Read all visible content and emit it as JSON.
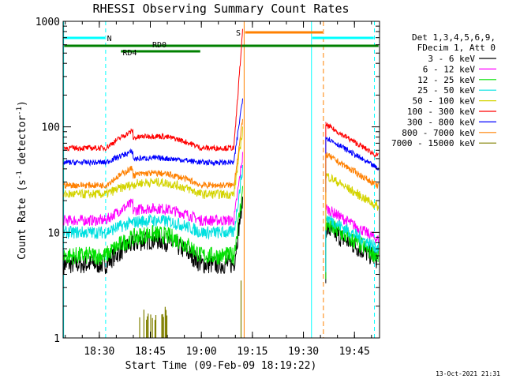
{
  "chart_data": {
    "type": "line",
    "title": "RHESSI Observing Summary Count Rates",
    "xlabel": "Start Time (09-Feb-09 18:19:22)",
    "ylabel_main": "Count Rate (s",
    "ylabel_sup1": "-1",
    "ylabel_mid": " detector",
    "ylabel_sup2": "-1",
    "ylabel_end": ")",
    "yscale": "log",
    "ylim": [
      1,
      1000
    ],
    "xlim_minutes": [
      0,
      93
    ],
    "x_ticks": [
      {
        "m": 10.63,
        "label": "18:30"
      },
      {
        "m": 25.63,
        "label": "18:45"
      },
      {
        "m": 40.63,
        "label": "19:00"
      },
      {
        "m": 55.63,
        "label": "19:15"
      },
      {
        "m": 70.63,
        "label": "19:30"
      },
      {
        "m": 85.63,
        "label": "19:45"
      }
    ],
    "y_ticks": [
      {
        "v": 1,
        "label": "1"
      },
      {
        "v": 10,
        "label": "10"
      },
      {
        "v": 100,
        "label": "100"
      },
      {
        "v": 1000,
        "label": "1000"
      }
    ],
    "legend_header": [
      "Det 1,3,4,5,6,9,",
      "FDecim 1, Att 0"
    ],
    "series": [
      {
        "name": "3 - 6 keV",
        "color": "#000000",
        "pre": 5,
        "bump": 1.7,
        "post": 11
      },
      {
        "name": "6 - 12 keV",
        "color": "#ff00ff",
        "pre": 13,
        "bump": 1.3,
        "post": 17
      },
      {
        "name": "12 - 25 keV",
        "color": "#00e000",
        "pre": 6,
        "bump": 1.6,
        "post": 12
      },
      {
        "name": "25 - 50 keV",
        "color": "#00e0e0",
        "pre": 10,
        "bump": 1.3,
        "post": 14
      },
      {
        "name": "50 - 100 keV",
        "color": "#d4d400",
        "pre": 23,
        "bump": 1.3,
        "post": 35
      },
      {
        "name": "100 - 300 keV",
        "color": "#ff0000",
        "pre": 63,
        "bump": 1.3,
        "post": 105
      },
      {
        "name": "300 - 800 keV",
        "color": "#0000ff",
        "pre": 46,
        "bump": 1.1,
        "post": 80
      },
      {
        "name": "800 - 7000 keV",
        "color": "#ff8000",
        "pre": 28,
        "bump": 1.3,
        "post": 55
      },
      {
        "name": "7000 - 15000 keV",
        "color": "#808000",
        "pre": 0,
        "bump": 0,
        "post": 0
      }
    ],
    "flags": [
      {
        "label": "N",
        "color": "#00ffff"
      },
      {
        "label": "RD0",
        "color": "#008000"
      },
      {
        "label": "RD4",
        "color": "#008000"
      },
      {
        "label": "S",
        "color": "#ff8000"
      }
    ],
    "footer_date": "13-Oct-2021 21:31"
  }
}
